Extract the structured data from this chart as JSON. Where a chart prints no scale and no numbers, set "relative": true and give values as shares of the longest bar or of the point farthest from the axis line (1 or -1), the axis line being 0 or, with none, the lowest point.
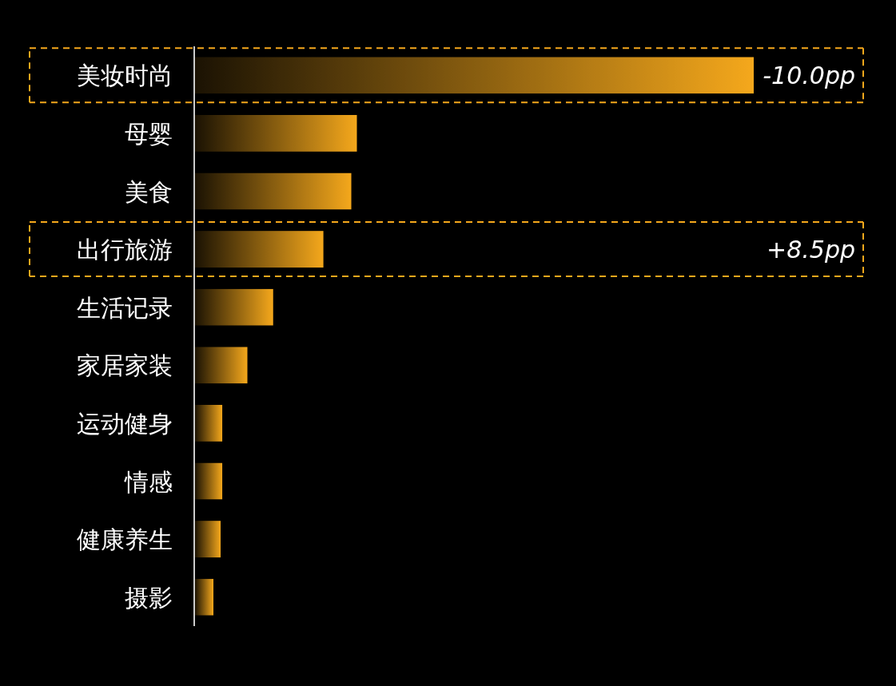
{
  "chart_data": {
    "type": "bar",
    "orientation": "horizontal",
    "relative": true,
    "categories": [
      "美妆时尚",
      "母婴",
      "美食",
      "出行旅游",
      "生活记录",
      "家居家装",
      "运动健身",
      "情感",
      "健康养生",
      "摄影"
    ],
    "series": [
      {
        "color": "#f5a81c",
        "values": [
          1,
          0.29,
          0.28,
          0.23,
          0.14,
          0.094,
          0.049,
          0.049,
          0.046,
          0.033
        ]
      }
    ],
    "annotations": [
      "-10.0pp",
      "+8.5pp"
    ]
  }
}
